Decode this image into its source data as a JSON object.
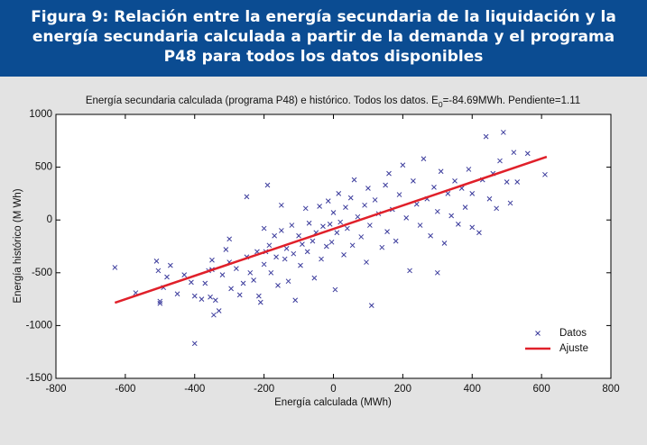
{
  "chart_data": {
    "type": "scatter",
    "caption": "Figura 9: Relación entre la energía secundaria de la liquidación y la energía secundaria calculada a partir de la demanda y el programa P48 para todos los datos disponibles",
    "title": [
      "Energía secundaria calculada (programa P48) e histórico. Todos los datos. E",
      "0",
      "=-84.69MWh. Pendiente=1.11"
    ],
    "x_label": "Energía calculada (MWh)",
    "y_label": "Energía histórico (M Wh)",
    "xlim": [
      -800,
      800
    ],
    "xticks": [
      -800,
      -600,
      -400,
      -200,
      0,
      200,
      400,
      600,
      800
    ],
    "ylim": [
      -1500,
      1000
    ],
    "yticks": [
      -1500,
      -1000,
      -500,
      0,
      500,
      1000
    ],
    "legend": "lower right",
    "series": [
      {
        "name": "Datos",
        "type": "scatter",
        "color": "#3b3b9c",
        "x": [
          -630,
          -570,
          -510,
          -505,
          -500,
          -500,
          -490,
          -480,
          -470,
          -450,
          -430,
          -410,
          -400,
          -400,
          -380,
          -370,
          -360,
          -355,
          -350,
          -345,
          -340,
          -330,
          -320,
          -310,
          -300,
          -300,
          -295,
          -280,
          -270,
          -260,
          -250,
          -240,
          -230,
          -220,
          -215,
          -210,
          -200,
          -200,
          -195,
          -190,
          -185,
          -180,
          -170,
          -165,
          -160,
          -150,
          -140,
          -135,
          -130,
          -120,
          -115,
          -110,
          -100,
          -95,
          -90,
          -80,
          -75,
          -70,
          -60,
          -55,
          -50,
          -40,
          -35,
          -30,
          -20,
          -15,
          -10,
          -5,
          0,
          5,
          10,
          15,
          20,
          30,
          35,
          40,
          50,
          55,
          60,
          70,
          80,
          90,
          95,
          100,
          105,
          110,
          120,
          130,
          140,
          150,
          155,
          160,
          170,
          180,
          190,
          200,
          210,
          220,
          230,
          240,
          250,
          260,
          270,
          280,
          290,
          300,
          310,
          320,
          330,
          340,
          350,
          360,
          370,
          380,
          390,
          400,
          420,
          430,
          440,
          450,
          460,
          470,
          480,
          490,
          500,
          510,
          520,
          530,
          560,
          610,
          -350,
          -250,
          -150,
          300,
          400
        ],
        "values": [
          -450,
          -690,
          -390,
          -480,
          -770,
          -790,
          -640,
          -540,
          -430,
          -700,
          -520,
          -590,
          -720,
          -1170,
          -750,
          -600,
          -480,
          -730,
          -380,
          -900,
          -760,
          -860,
          -520,
          -280,
          -400,
          -180,
          -650,
          -460,
          -710,
          -600,
          -350,
          -500,
          -570,
          -300,
          -720,
          -780,
          -420,
          -80,
          -300,
          330,
          -240,
          -500,
          -150,
          -350,
          -620,
          -100,
          -370,
          -270,
          -580,
          -50,
          -320,
          -760,
          -150,
          -430,
          -230,
          110,
          -300,
          -30,
          -200,
          -550,
          -120,
          130,
          -370,
          -60,
          -250,
          180,
          -40,
          -210,
          70,
          -660,
          -120,
          250,
          -20,
          -330,
          120,
          -80,
          210,
          -240,
          380,
          30,
          -160,
          140,
          -400,
          300,
          -50,
          -810,
          190,
          60,
          -260,
          330,
          -110,
          440,
          100,
          -200,
          240,
          520,
          20,
          -480,
          370,
          150,
          -50,
          580,
          200,
          -150,
          310,
          80,
          460,
          -220,
          250,
          40,
          370,
          -40,
          300,
          120,
          480,
          250,
          -120,
          380,
          790,
          200,
          440,
          110,
          560,
          830,
          360,
          160,
          640,
          360,
          630,
          430,
          -470,
          220,
          140,
          -500,
          -70
        ]
      },
      {
        "name": "Ajuste",
        "type": "line",
        "color": "#e0202a",
        "x": [
          -630,
          615
        ],
        "values": [
          -784,
          598
        ]
      }
    ]
  }
}
